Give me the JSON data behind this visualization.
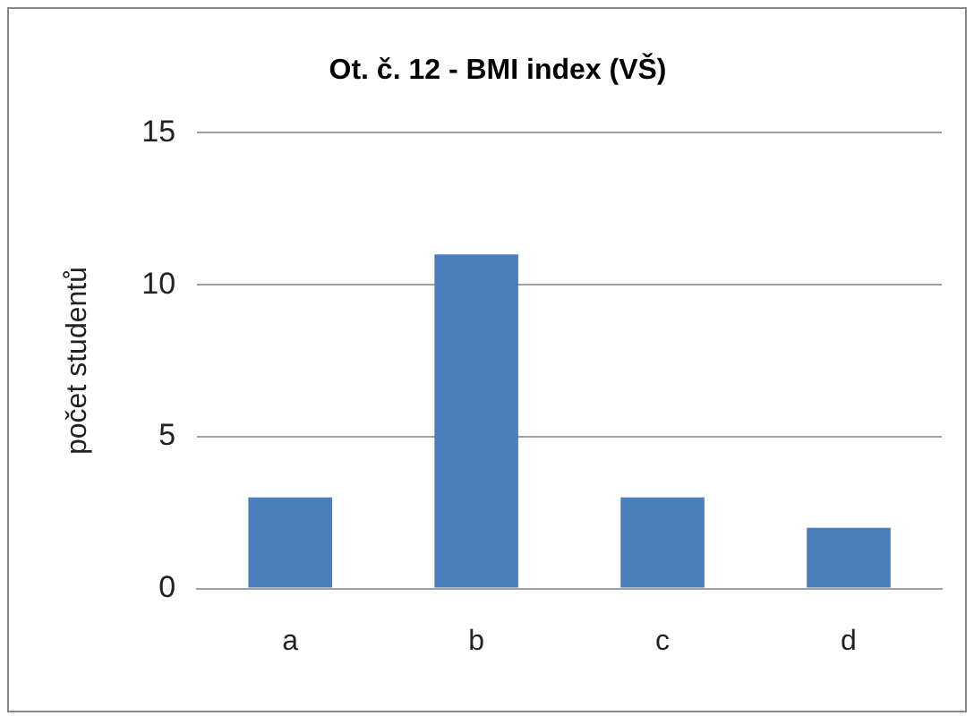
{
  "chart_data": {
    "type": "bar",
    "title": "Ot. č. 12 - BMI index (VŠ)",
    "ylabel": "počet studentů",
    "categories": [
      "a",
      "b",
      "c",
      "d"
    ],
    "values": [
      3,
      11,
      3,
      2
    ],
    "color": "#4a7ebb",
    "ylim": [
      0,
      15
    ],
    "yticks": [
      0,
      5,
      10,
      15
    ],
    "grid": "y"
  }
}
